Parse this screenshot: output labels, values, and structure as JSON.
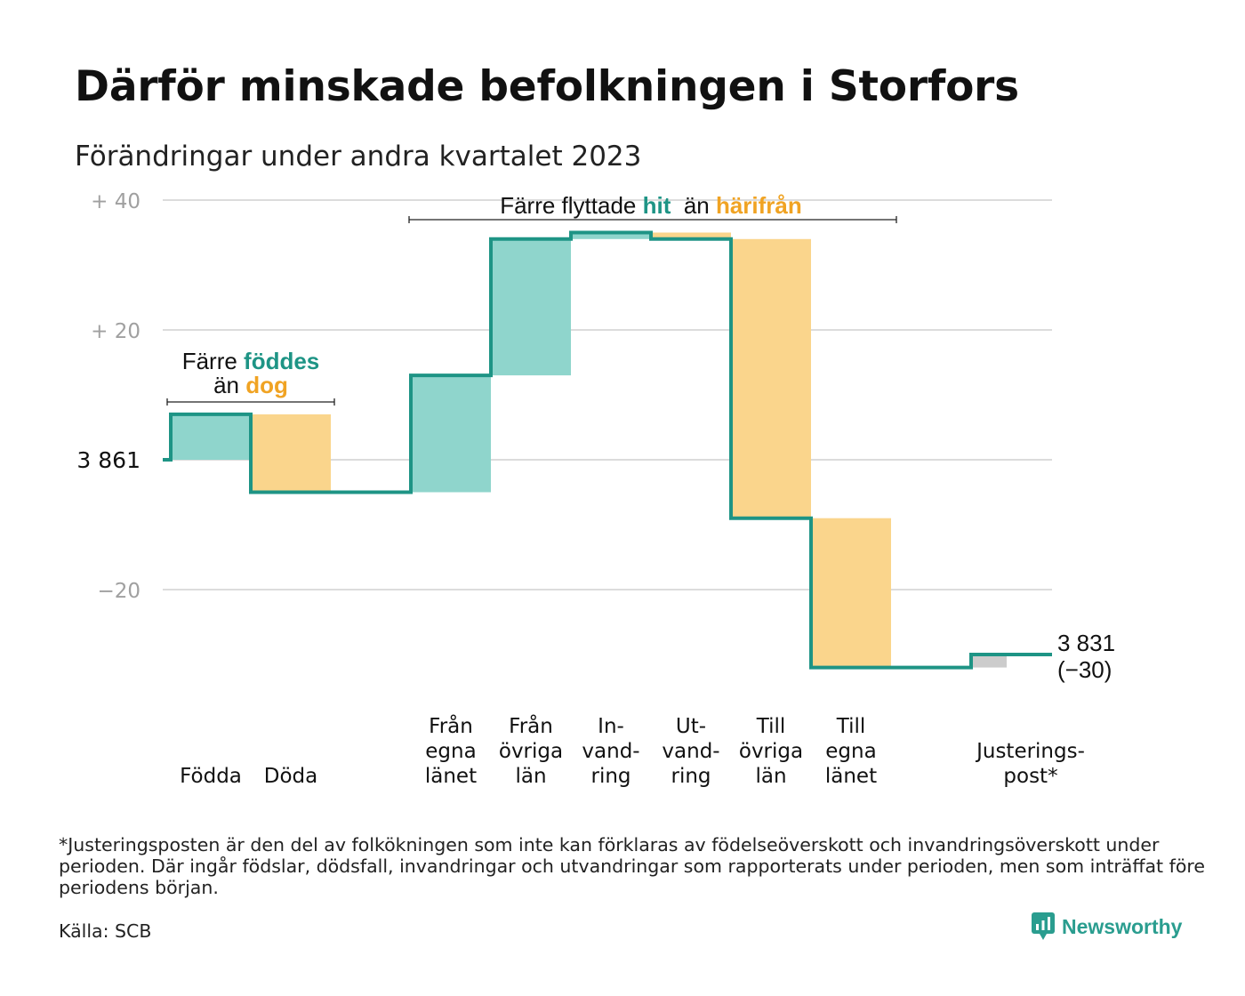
{
  "title": "Därför minskade befolkningen i Storfors",
  "subtitle": "Förändringar under andra kvartalet 2023",
  "footnote": "*Justeringsposten är den del av folkökningen som inte kan förklaras av födelseöverskott och invandringsöverskott under perioden. Där ingår födslar, dödsfall, invandringar och utvandringar som rapporterats under perioden, men som inträffat före periodens början.",
  "source": "Källa: SCB",
  "logo_text": "Newsworthy",
  "colors": {
    "increase": "#8fd5cc",
    "decrease": "#fad58c",
    "adjustment": "#cccccc",
    "line": "#1e9485",
    "accent_teal": "#1e9485",
    "accent_orange": "#f0a323",
    "grid": "#dcdcdc",
    "tick_text": "#a0a0a0"
  },
  "chart_data": {
    "type": "waterfall",
    "start_value": 3861,
    "end_label": [
      "3 831",
      "(−30)"
    ],
    "start_label": "3  861",
    "ylim": [
      -32,
      42
    ],
    "y_ticks": [
      {
        "value": 40,
        "label": "+  40"
      },
      {
        "value": 20,
        "label": "+  20"
      },
      {
        "value": 0,
        "label": "3  861"
      },
      {
        "value": -20,
        "label": "−20"
      }
    ],
    "grid": true,
    "steps": [
      {
        "name": "Födda",
        "label_lines": [
          "Födda"
        ],
        "change": 7,
        "kind": "increase"
      },
      {
        "name": "Döda",
        "label_lines": [
          "Döda"
        ],
        "change": -12,
        "kind": "decrease"
      },
      {
        "name": "",
        "label_lines": [],
        "change": 0,
        "kind": "gap"
      },
      {
        "name": "Från egna länet",
        "label_lines": [
          "Från",
          "egna",
          "länet"
        ],
        "change": 18,
        "kind": "increase"
      },
      {
        "name": "Från övriga län",
        "label_lines": [
          "Från",
          "övriga",
          "län"
        ],
        "change": 21,
        "kind": "increase"
      },
      {
        "name": "Invandring",
        "label_lines": [
          "In-",
          "vand-",
          "ring"
        ],
        "change": 1,
        "kind": "increase"
      },
      {
        "name": "Utvandring",
        "label_lines": [
          "Ut-",
          "vand-",
          "ring"
        ],
        "change": -1,
        "kind": "decrease"
      },
      {
        "name": "Till övriga län",
        "label_lines": [
          "Till",
          "övriga",
          "län"
        ],
        "change": -43,
        "kind": "decrease"
      },
      {
        "name": "Till egna länet",
        "label_lines": [
          "Till",
          "egna",
          "länet"
        ],
        "change": -23,
        "kind": "decrease"
      },
      {
        "name": "",
        "label_lines": [],
        "change": 0,
        "kind": "gap"
      },
      {
        "name": "Justeringspost*",
        "label_lines": [
          "Justerings-",
          "post*"
        ],
        "change": 2,
        "kind": "adjustment"
      }
    ],
    "annotations": [
      {
        "id": "births",
        "parts": [
          {
            "text": "Färre ",
            "style": "plain"
          },
          {
            "text": "föddes",
            "style": "teal"
          }
        ],
        "parts2": [
          {
            "text": "än ",
            "style": "plain"
          },
          {
            "text": "dog",
            "style": "orange"
          }
        ],
        "from_step": 0,
        "to_step": 1
      },
      {
        "id": "moves",
        "parts": [
          {
            "text": "Färre flyttade ",
            "style": "plain"
          },
          {
            "text": "hit",
            "style": "teal"
          },
          {
            "text": "  än ",
            "style": "plain"
          },
          {
            "text": "härifrån",
            "style": "orange"
          }
        ],
        "from_step": 3,
        "to_step": 8
      }
    ]
  }
}
